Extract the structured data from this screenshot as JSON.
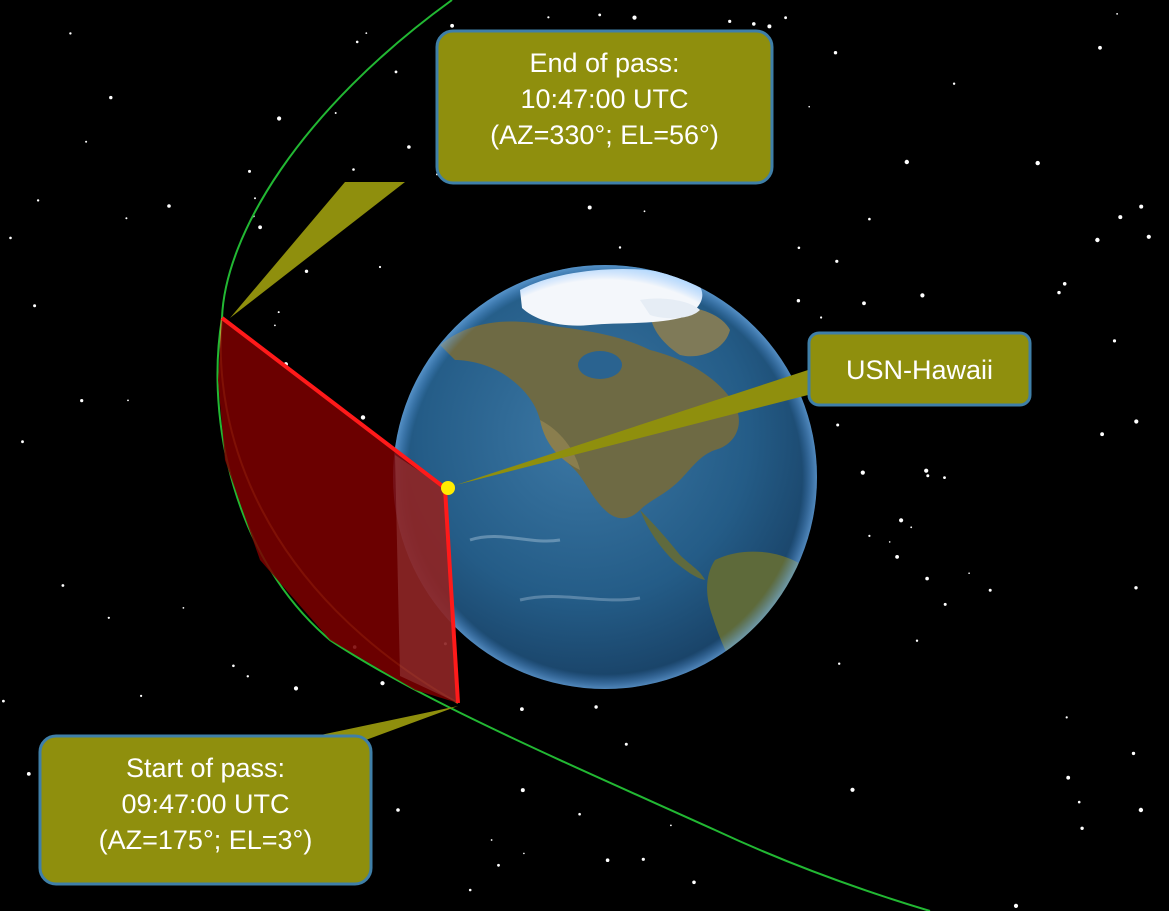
{
  "callouts": {
    "end_of_pass": {
      "lines": [
        "End of pass:",
        "10:47:00 UTC",
        "(AZ=330°; EL=56°)"
      ]
    },
    "start_of_pass": {
      "lines": [
        "Start of pass:",
        "09:47:00 UTC",
        "(AZ=175°; EL=3°)"
      ]
    },
    "ground_station": {
      "label": "USN-Hawaii"
    }
  },
  "colors": {
    "background": "#000000",
    "callout_fill": "#8f8f0d",
    "callout_border": "#3f7fa8",
    "orbit": "#22b833",
    "pass_region": "#7a0000",
    "pass_edge": "#ff1a1a",
    "station": "#ffec00",
    "ocean": "#245c87",
    "land": "#6e6a44",
    "ice": "#f4f7fb"
  }
}
